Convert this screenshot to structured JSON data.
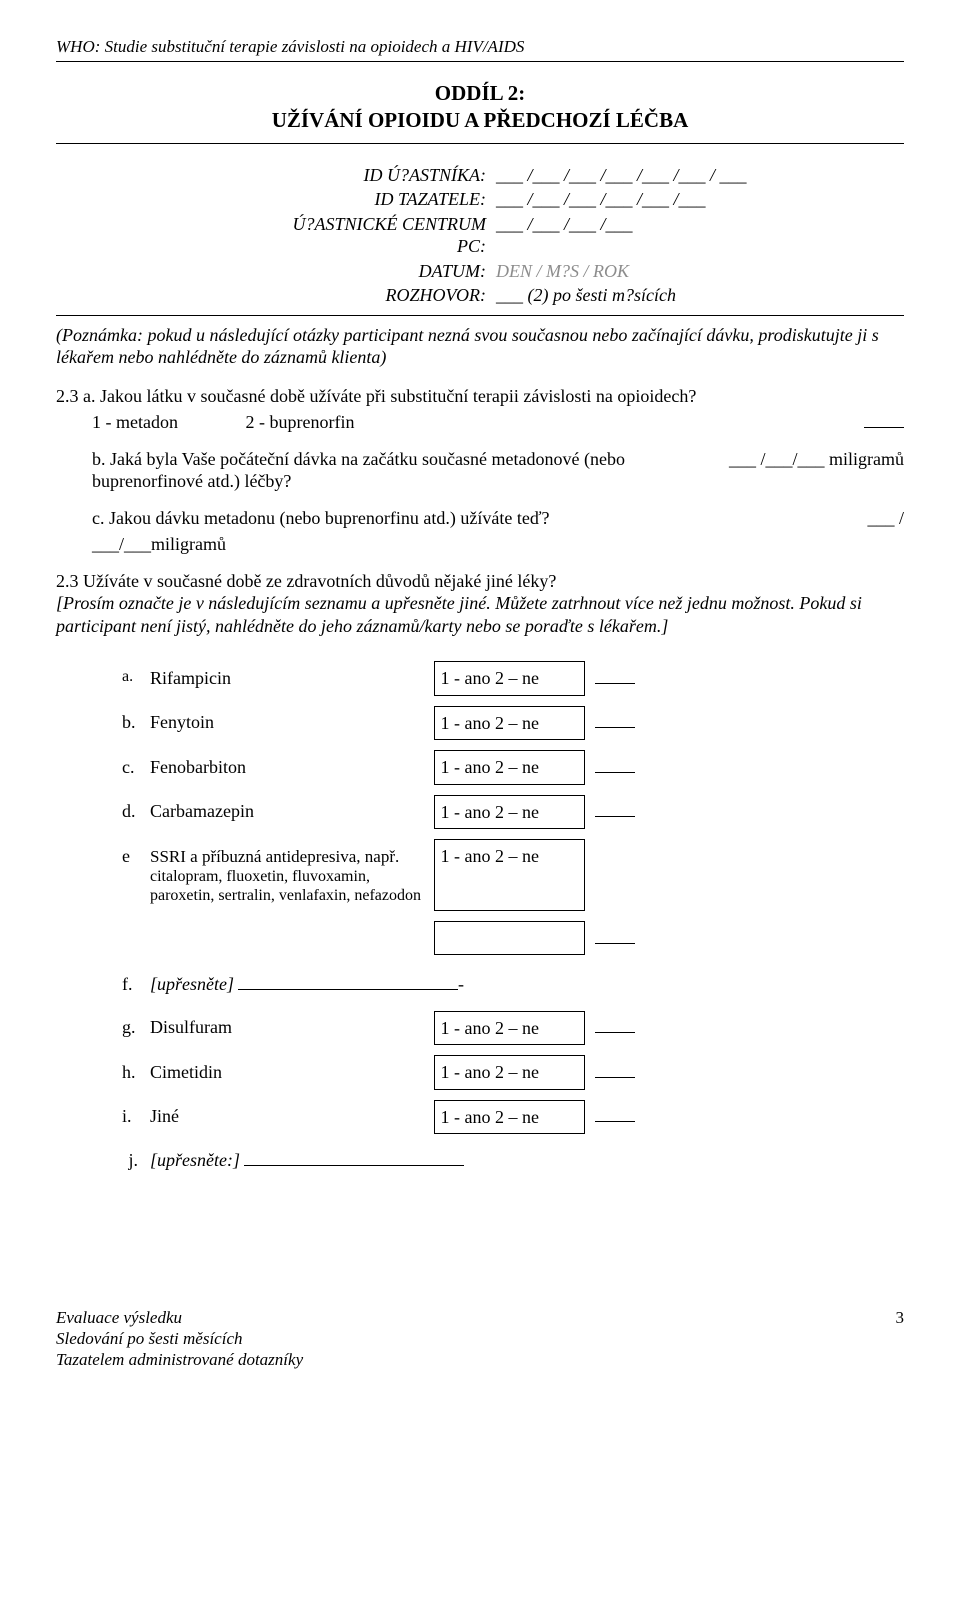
{
  "header": "WHO: Studie substituční terapie závislosti na opioidech a HIV/AIDS",
  "section": {
    "line1": "ODDÍL 2:",
    "line2": "UŽÍVÁNÍ OPIOIDU A PŘEDCHOZÍ LÉČBA"
  },
  "ids": {
    "participant_label": "ID Ú?ASTNÍKA:",
    "participant_val": "___ /___ /___ /___ /___ /___ / ___",
    "interviewer_label": "ID TAZATELE:",
    "interviewer_val": "___ /___ /___ /___ /___ /___",
    "center_label": "Ú?ASTNICKÉ CENTRUM PC:",
    "center_val": "___ /___ /___ /___",
    "date_label": "DATUM:",
    "date_val": "DEN / M?S / ROK",
    "interview_label": "ROZHOVOR:",
    "interview_val": "___ (2) po šesti m?sících"
  },
  "note": "(Poznámka: pokud u následující otázky participant nezná svou současnou nebo začínající dávku, prodiskutujte ji s lékařem nebo nahlédněte do záznamů klienta)",
  "q23a": {
    "text": "2.3 a. Jakou látku v současné době užíváte při substituční terapii závislosti na opioidech?",
    "opts": "1 - metadon               2 - buprenorfin"
  },
  "q23b": {
    "text": "b. Jaká byla Vaše počáteční dávka na začátku současné metadonové (nebo buprenorfinové atd.) léčby?",
    "fill": "___ /___/___ miligramů"
  },
  "q23c": {
    "text": "c. Jakou dávku metadonu (nebo buprenorfinu atd.) užíváte teď?",
    "fill1": "___ /",
    "fill2": "___/___miligramů"
  },
  "q23main": {
    "text": "2.3 Užíváte v současné době ze zdravotních důvodů nějaké jiné léky?",
    "instr": "[Prosím označte je v následujícím seznamu a upřesněte jiné. Můžete zatrhnout více než jednu možnost. Pokud si participant není jistý, nahlédněte do jeho záznamů/karty nebo se poraďte s lékařem.]"
  },
  "meds": {
    "options_text": "1 - ano   2 – ne",
    "items": [
      {
        "letter": "a.",
        "name": "Rifampicin",
        "box": true,
        "blank": true,
        "sep": true
      },
      {
        "letter": "b.",
        "name": "Fenytoin",
        "box": true,
        "blank": true,
        "sep": true
      },
      {
        "letter": "c.",
        "name": "Fenobarbiton",
        "box": true,
        "blank": true,
        "sep": true
      },
      {
        "letter": "d.",
        "name": "Carbamazepin",
        "box": true,
        "blank": true,
        "sep": true
      },
      {
        "letter": "e",
        "name": "SSRI a příbuzná antidepresiva, např.",
        "note": "citalopram, fluoxetin, fluvoxamin, paroxetin, sertralin, venlafaxin, nefazodon",
        "box": true,
        "blank": false,
        "sep": true
      }
    ],
    "empty_after_e_blank": true,
    "f": {
      "letter": "f.",
      "name": "[upřesněte]"
    },
    "lower": [
      {
        "letter": "g.",
        "name": "Disulfuram",
        "box": true,
        "blank": true,
        "sep": true
      },
      {
        "letter": "h.",
        "name": "Cimetidin",
        "box": true,
        "blank": true,
        "sep": true
      },
      {
        "letter": "i.",
        "name": "Jiné",
        "box": true,
        "blank": true,
        "sep": true
      }
    ],
    "j": {
      "letter": "j.",
      "name": "[upřesněte:]"
    }
  },
  "footer": {
    "l1": "Evaluace výsledku",
    "l2": "Sledování po šesti měsících",
    "l3": "Tazatelem administrované dotazníky",
    "page": "3"
  }
}
